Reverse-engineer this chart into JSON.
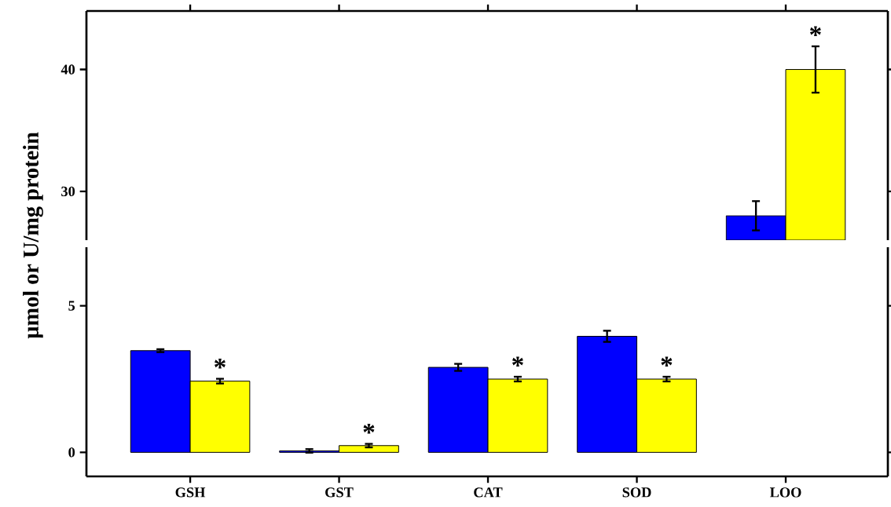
{
  "chart_data": [
    {
      "type": "bar",
      "categories": [
        null,
        null,
        null,
        null,
        null
      ],
      "ylim": [
        26,
        44.8
      ],
      "yticks": [
        30,
        40
      ],
      "tick_labels": "y",
      "series": [
        {
          "color": "#0000ff",
          "values": [
            null,
            null,
            null,
            null,
            28.0
          ],
          "errors": [
            null,
            null,
            null,
            null,
            1.2
          ]
        },
        {
          "color": "#ffff00",
          "values": [
            null,
            null,
            null,
            null,
            40.0
          ],
          "errors": [
            null,
            null,
            null,
            null,
            1.9
          ]
        }
      ],
      "annotations": [
        "*"
      ]
    },
    {
      "type": "bar",
      "categories": [
        "GSH",
        "GST",
        "CAT",
        "SOD",
        "LOO"
      ],
      "ylim": [
        -0.82,
        7.0
      ],
      "yticks": [
        0,
        5
      ],
      "ylabel": "µmol or U/mg protein",
      "series": [
        {
          "color": "#0000ff",
          "values": [
            3.47,
            0.05,
            2.9,
            3.96,
            null
          ],
          "errors": [
            0.05,
            0.06,
            0.12,
            0.19,
            null
          ]
        },
        {
          "color": "#ffff00",
          "values": [
            2.43,
            0.23,
            2.5,
            2.5,
            null
          ],
          "errors": [
            0.08,
            0.06,
            0.08,
            0.08,
            null
          ]
        }
      ],
      "annotations": [
        "*",
        "*",
        "*",
        "*"
      ]
    }
  ]
}
